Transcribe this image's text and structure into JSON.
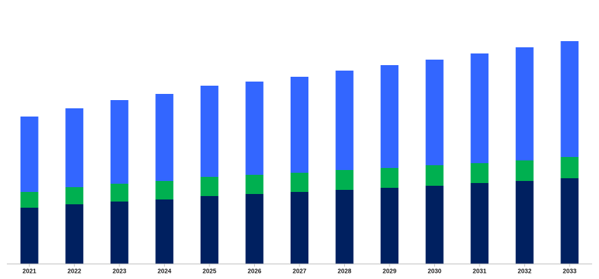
{
  "chart_data": {
    "type": "stacked_bar",
    "categories": [
      "2021",
      "2022",
      "2023",
      "2024",
      "2025",
      "2026",
      "2027",
      "2028",
      "2029",
      "2030",
      "2031",
      "2032",
      "2033"
    ],
    "series": [
      {
        "color": "#002060",
        "values": [
          82,
          87,
          91,
          94,
          99,
          102,
          105,
          108,
          111,
          114,
          118,
          121,
          125
        ]
      },
      {
        "color": "#00b050",
        "values": [
          23,
          25,
          26,
          27,
          28,
          28,
          28,
          29,
          29,
          30,
          29,
          30,
          31
        ]
      },
      {
        "color": "#3366ff",
        "values": [
          110,
          115,
          122,
          127,
          133,
          136,
          140,
          145,
          150,
          154,
          160,
          165,
          169
        ]
      }
    ],
    "ylim": [
      0,
      340
    ]
  }
}
